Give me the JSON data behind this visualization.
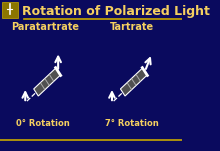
{
  "bg_color": "#0a0a5e",
  "title": "Rotation of Polarized Light",
  "title_color": "#f5d060",
  "title_fontsize": 9,
  "label_left": "Paratartrate",
  "label_right": "Tartrate",
  "label_color": "#f5d060",
  "label_fontsize": 7,
  "rotation_left": "0° Rotation",
  "rotation_right": "7° Rotation",
  "rotation_color": "#f5d060",
  "rotation_fontsize": 6,
  "line_color": "#c8a800",
  "arrow_color": "#ffffff",
  "tube_color": "#888888",
  "tube_highlight": "#cccccc",
  "dashed_color": "#ffffff",
  "separator_color": "#c8a800"
}
